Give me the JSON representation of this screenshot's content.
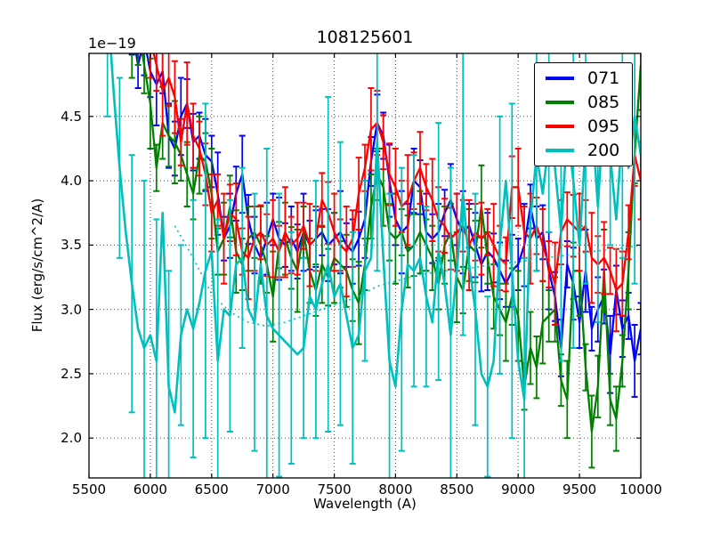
{
  "figure": {
    "title": "108125601",
    "offset_text": "1e−19",
    "xlabel": "Wavelength (A)",
    "ylabel": "Flux (erg/s/cm^2/A)",
    "background": "#ffffff",
    "spine_color": "#000000",
    "grid_color": "#444444"
  },
  "chart_data": {
    "type": "line",
    "title": "108125601",
    "xlabel": "Wavelength (A)",
    "ylabel": "Flux (erg/s/cm^2/A)",
    "y_offset_factor": "1e-19",
    "xlim": [
      5500,
      10000
    ],
    "ylim": [
      1.69,
      4.99
    ],
    "x_ticks": [
      5500,
      6000,
      6500,
      7000,
      7500,
      8000,
      8500,
      9000,
      9500,
      10000
    ],
    "y_ticks": [
      2.0,
      2.5,
      3.0,
      3.5,
      4.0,
      4.5
    ],
    "grid": "dotted",
    "legend_position": "upper right",
    "x_step": 50,
    "series": [
      {
        "name": "071",
        "color": "#0000ff",
        "line_width": 2.3,
        "err_every": 1,
        "err_pattern": [
          0.22,
          0.18,
          0.28,
          0.2,
          0.32,
          0.17,
          0.25,
          0.21,
          0.3,
          0.19
        ],
        "x_start": 5850,
        "values": [
          5.2,
          4.9,
          5.1,
          4.85,
          4.75,
          4.85,
          4.35,
          4.25,
          4.5,
          4.6,
          4.3,
          4.35,
          4.2,
          4.15,
          3.9,
          3.55,
          3.65,
          3.9,
          4.05,
          3.7,
          3.5,
          3.4,
          3.55,
          3.7,
          3.55,
          3.5,
          3.55,
          3.45,
          3.6,
          3.5,
          3.55,
          3.6,
          3.5,
          3.55,
          3.6,
          3.5,
          3.45,
          3.55,
          3.7,
          4.15,
          4.45,
          4.35,
          4.0,
          3.7,
          3.6,
          3.65,
          4.0,
          3.95,
          3.6,
          3.55,
          3.6,
          3.75,
          3.85,
          3.7,
          3.6,
          3.65,
          3.5,
          3.35,
          3.45,
          3.4,
          3.3,
          3.2,
          3.3,
          3.35,
          3.5,
          3.8,
          3.55,
          3.6,
          3.3,
          3.1,
          2.7,
          3.35,
          3.2,
          2.9,
          3.3,
          2.85,
          3.0,
          3.1,
          2.65,
          3.15,
          2.85,
          2.95,
          2.6,
          2.85
        ]
      },
      {
        "name": "085",
        "color": "#008000",
        "line_width": 2.3,
        "err_every": 1,
        "err_pattern": [
          0.25,
          0.2,
          0.3,
          0.22,
          0.35,
          0.18,
          0.28,
          0.24,
          0.32,
          0.2
        ],
        "x_start": 5800,
        "values": [
          5.3,
          5.0,
          5.2,
          4.9,
          4.6,
          4.1,
          4.45,
          4.35,
          4.3,
          4.2,
          4.05,
          3.9,
          4.2,
          4.15,
          3.9,
          3.45,
          3.55,
          3.8,
          3.45,
          3.35,
          3.55,
          3.6,
          3.5,
          3.35,
          3.1,
          3.5,
          3.55,
          3.4,
          3.3,
          3.6,
          3.3,
          3.15,
          3.35,
          3.25,
          3.4,
          3.35,
          3.3,
          3.15,
          3.05,
          3.35,
          3.8,
          4.05,
          3.95,
          3.6,
          3.55,
          3.6,
          3.45,
          3.5,
          3.6,
          3.5,
          3.4,
          3.2,
          3.5,
          3.6,
          3.25,
          3.15,
          3.5,
          3.45,
          3.8,
          3.4,
          3.1,
          3.0,
          2.9,
          3.1,
          2.95,
          2.4,
          2.7,
          2.55,
          2.9,
          2.95,
          3.0,
          2.45,
          2.3,
          3.3,
          3.3,
          2.55,
          2.05,
          2.4,
          3.3,
          2.3,
          2.15,
          2.6,
          3.3,
          4.2,
          4.9
        ]
      },
      {
        "name": "095",
        "color": "#ff0000",
        "line_width": 2.3,
        "err_every": 1,
        "err_pattern": [
          0.24,
          0.3,
          0.2,
          0.35,
          0.22,
          0.28,
          0.18,
          0.32,
          0.25,
          0.21
        ],
        "x_start": 5950,
        "values": [
          5.3,
          5.1,
          4.9,
          4.7,
          4.8,
          4.65,
          4.3,
          4.6,
          4.35,
          4.25,
          4.05,
          3.75,
          3.85,
          3.55,
          3.75,
          3.7,
          3.45,
          3.4,
          3.55,
          3.6,
          3.5,
          3.55,
          3.45,
          3.6,
          3.5,
          3.55,
          3.65,
          3.5,
          3.55,
          3.85,
          3.75,
          3.6,
          3.5,
          3.45,
          3.55,
          3.9,
          4.1,
          4.4,
          4.45,
          4.3,
          4.05,
          3.95,
          3.8,
          3.85,
          4.0,
          4.1,
          3.95,
          3.85,
          3.7,
          3.65,
          3.55,
          3.6,
          3.65,
          3.5,
          3.6,
          3.55,
          3.6,
          3.5,
          3.4,
          3.35,
          3.95,
          3.95,
          3.6,
          3.55,
          3.65,
          3.5,
          3.35,
          3.2,
          3.6,
          3.7,
          3.65,
          3.6,
          3.65,
          3.4,
          3.35,
          3.4,
          3.3,
          3.15,
          3.2,
          3.6,
          4.2,
          4.0
        ]
      },
      {
        "name": "200",
        "color": "#00bfbf",
        "line_width": 2.6,
        "err_every": 2,
        "err_pattern": [
          0.9,
          1.2,
          0.7,
          1.4,
          1.0,
          0.8,
          1.3,
          0.95,
          1.1,
          0.85
        ],
        "x_start": 5650,
        "values": [
          5.4,
          4.7,
          4.1,
          3.6,
          3.2,
          2.85,
          2.7,
          2.8,
          2.6,
          3.75,
          2.4,
          2.2,
          2.8,
          3.0,
          2.85,
          3.05,
          3.3,
          3.45,
          2.6,
          3.0,
          2.95,
          3.35,
          3.4,
          3.0,
          2.9,
          3.35,
          2.95,
          2.85,
          2.8,
          2.75,
          2.7,
          2.65,
          2.7,
          3.1,
          3.0,
          3.2,
          3.35,
          3.1,
          3.2,
          2.95,
          2.7,
          2.8,
          3.3,
          3.4,
          4.3,
          3.4,
          2.6,
          2.4,
          3.0,
          3.35,
          3.3,
          3.4,
          3.1,
          2.9,
          3.45,
          3.2,
          2.8,
          3.3,
          3.9,
          3.35,
          3.0,
          2.5,
          2.4,
          2.6,
          3.5,
          4.0,
          3.3,
          2.6,
          2.3,
          3.7,
          4.2,
          3.9,
          4.3,
          4.1,
          3.6,
          4.4,
          4.0,
          3.5,
          4.3,
          4.5,
          3.8,
          4.6,
          4.2,
          3.7,
          4.4,
          4.1,
          4.5,
          4.2
        ]
      }
    ],
    "fit_line": {
      "name": "200-dotted-fit",
      "color": "#00bfbf",
      "style": "dotted",
      "x": [
        6200,
        6350,
        6500,
        6650,
        6800,
        6950,
        7100,
        7250,
        7400,
        7550,
        7700,
        7850,
        8000,
        8200,
        8400,
        8600,
        8800,
        9000,
        9200,
        9400,
        9600,
        9800,
        10000
      ],
      "values": [
        3.65,
        3.4,
        3.12,
        2.98,
        2.9,
        2.87,
        2.9,
        2.95,
        3.0,
        3.05,
        3.1,
        3.18,
        3.22,
        3.27,
        3.3,
        3.32,
        3.35,
        3.37,
        3.4,
        3.42,
        3.45,
        3.47,
        3.5
      ]
    }
  }
}
